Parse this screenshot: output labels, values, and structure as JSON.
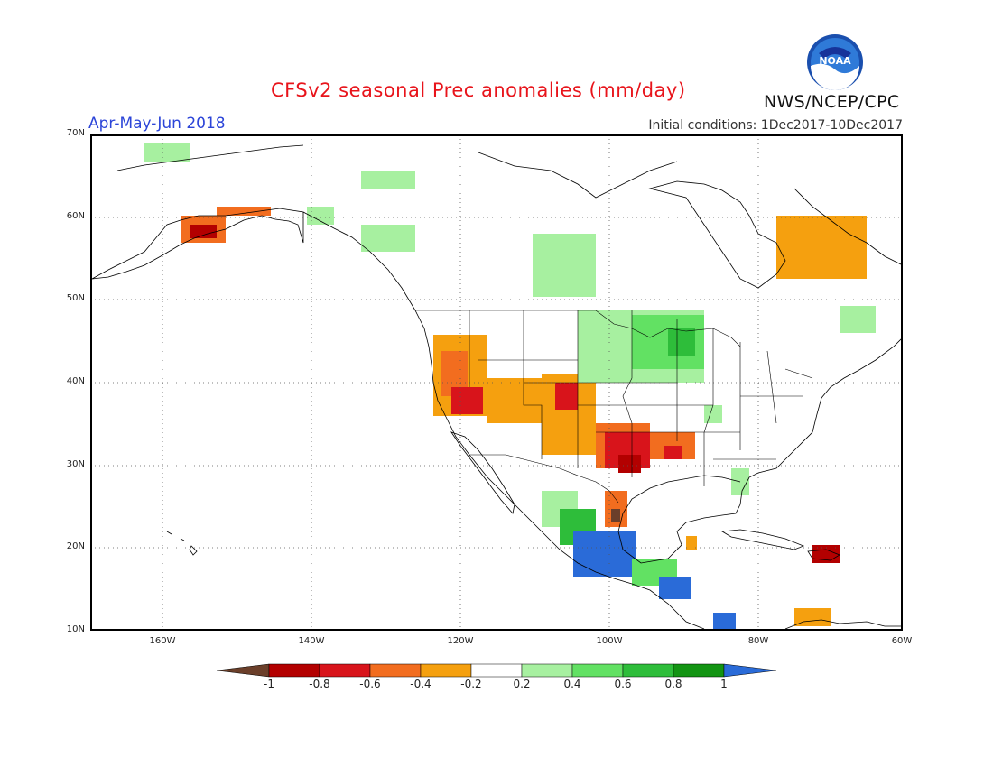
{
  "header": {
    "title": "CFSv2 seasonal Prec anomalies (mm/day)",
    "period": "Apr-May-Jun 2018",
    "initial_conditions": "Initial conditions: 1Dec2017-10Dec2017",
    "agency": "NWS/NCEP/CPC",
    "logo_text": "NOAA"
  },
  "axes": {
    "lat_labels": [
      "70N",
      "60N",
      "50N",
      "40N",
      "30N",
      "20N",
      "10N"
    ],
    "lon_labels": [
      "160W",
      "140W",
      "120W",
      "100W",
      "80W",
      "60W"
    ]
  },
  "colorbar": {
    "labels": [
      "-1",
      "-0.8",
      "-0.6",
      "-0.4",
      "-0.2",
      "0.2",
      "0.4",
      "0.6",
      "0.8",
      "1"
    ],
    "colors": [
      "#6b3f2a",
      "#b30000",
      "#d8141b",
      "#f26d1f",
      "#f5a00f",
      "#ffffff",
      "#a7f0a0",
      "#62e163",
      "#2ebd3a",
      "#139413",
      "#2a6bd8"
    ]
  }
}
